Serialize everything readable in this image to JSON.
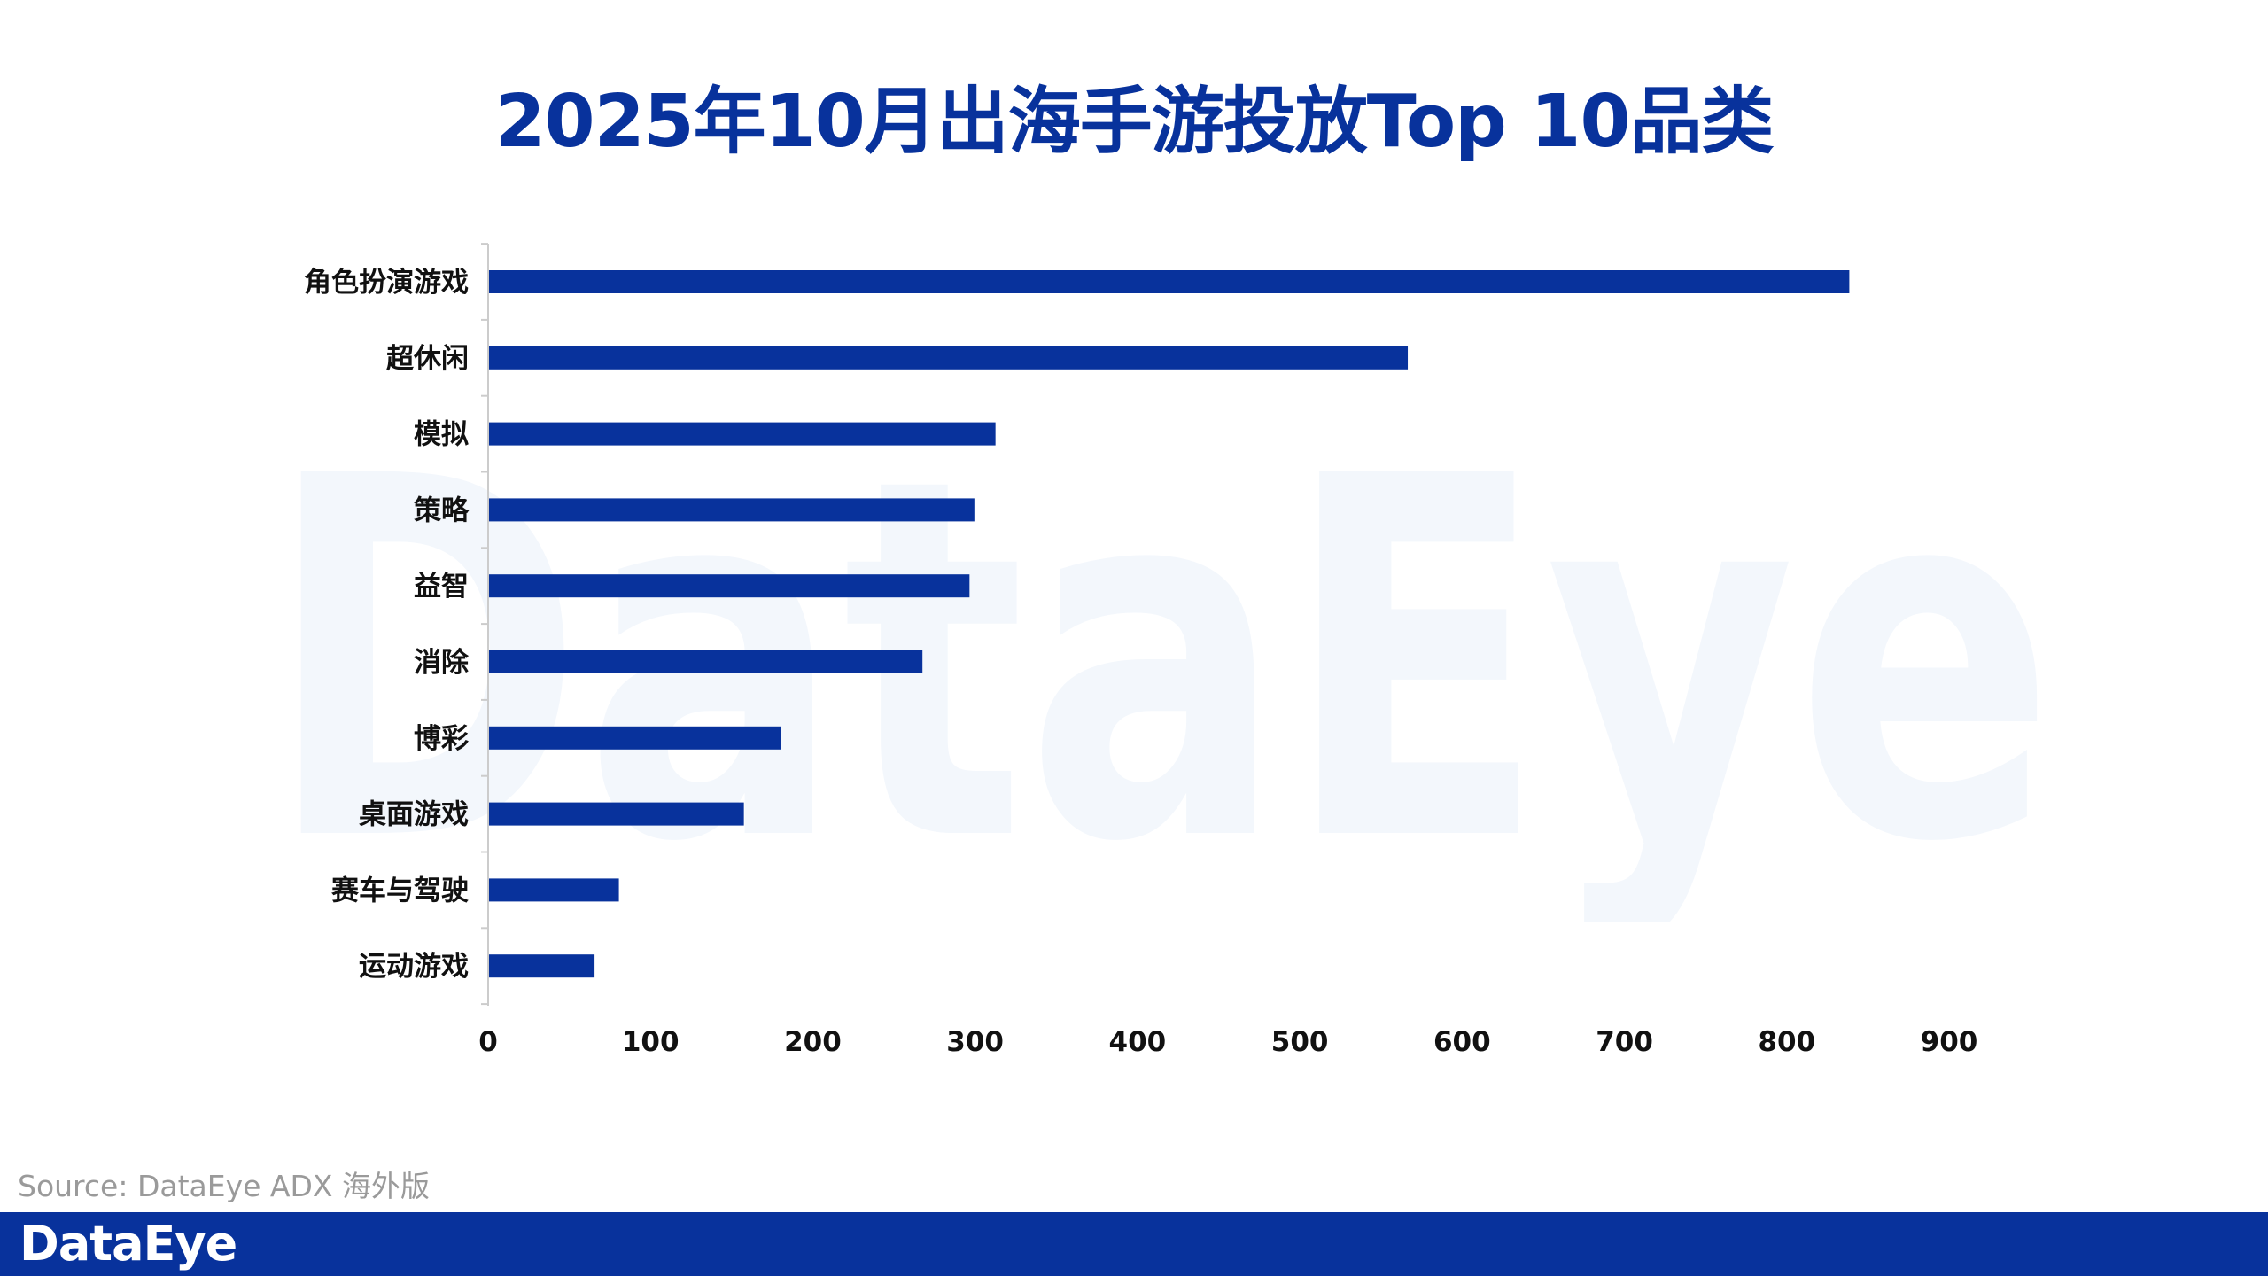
{
  "title": "2025年10月出海手游投放Top 10品类",
  "source": "Source: DataEye ADX 海外版",
  "logo_text": "DataEye",
  "watermark_text": "DataEye",
  "colors": {
    "bar": "#08329c",
    "title": "#08329c",
    "footer": "#08329c",
    "watermark": "#f3f7fc",
    "axis": "#cccccc",
    "source_text": "#9a9a9a"
  },
  "chart_data": {
    "type": "bar",
    "orientation": "horizontal",
    "title": "2025年10月出海手游投放Top 10品类",
    "categories": [
      "角色扮演游戏",
      "超休闲",
      "模拟",
      "策略",
      "益智",
      "消除",
      "博彩",
      "桌面游戏",
      "赛车与驾驶",
      "运动游戏"
    ],
    "values": [
      838,
      566,
      312,
      299,
      296,
      267,
      180,
      157,
      80,
      65
    ],
    "xlim": [
      0,
      900
    ],
    "xticks": [
      0,
      100,
      200,
      300,
      400,
      500,
      600,
      700,
      800,
      900
    ],
    "xlabel": "",
    "ylabel": "",
    "grid": false,
    "legend": "none"
  }
}
